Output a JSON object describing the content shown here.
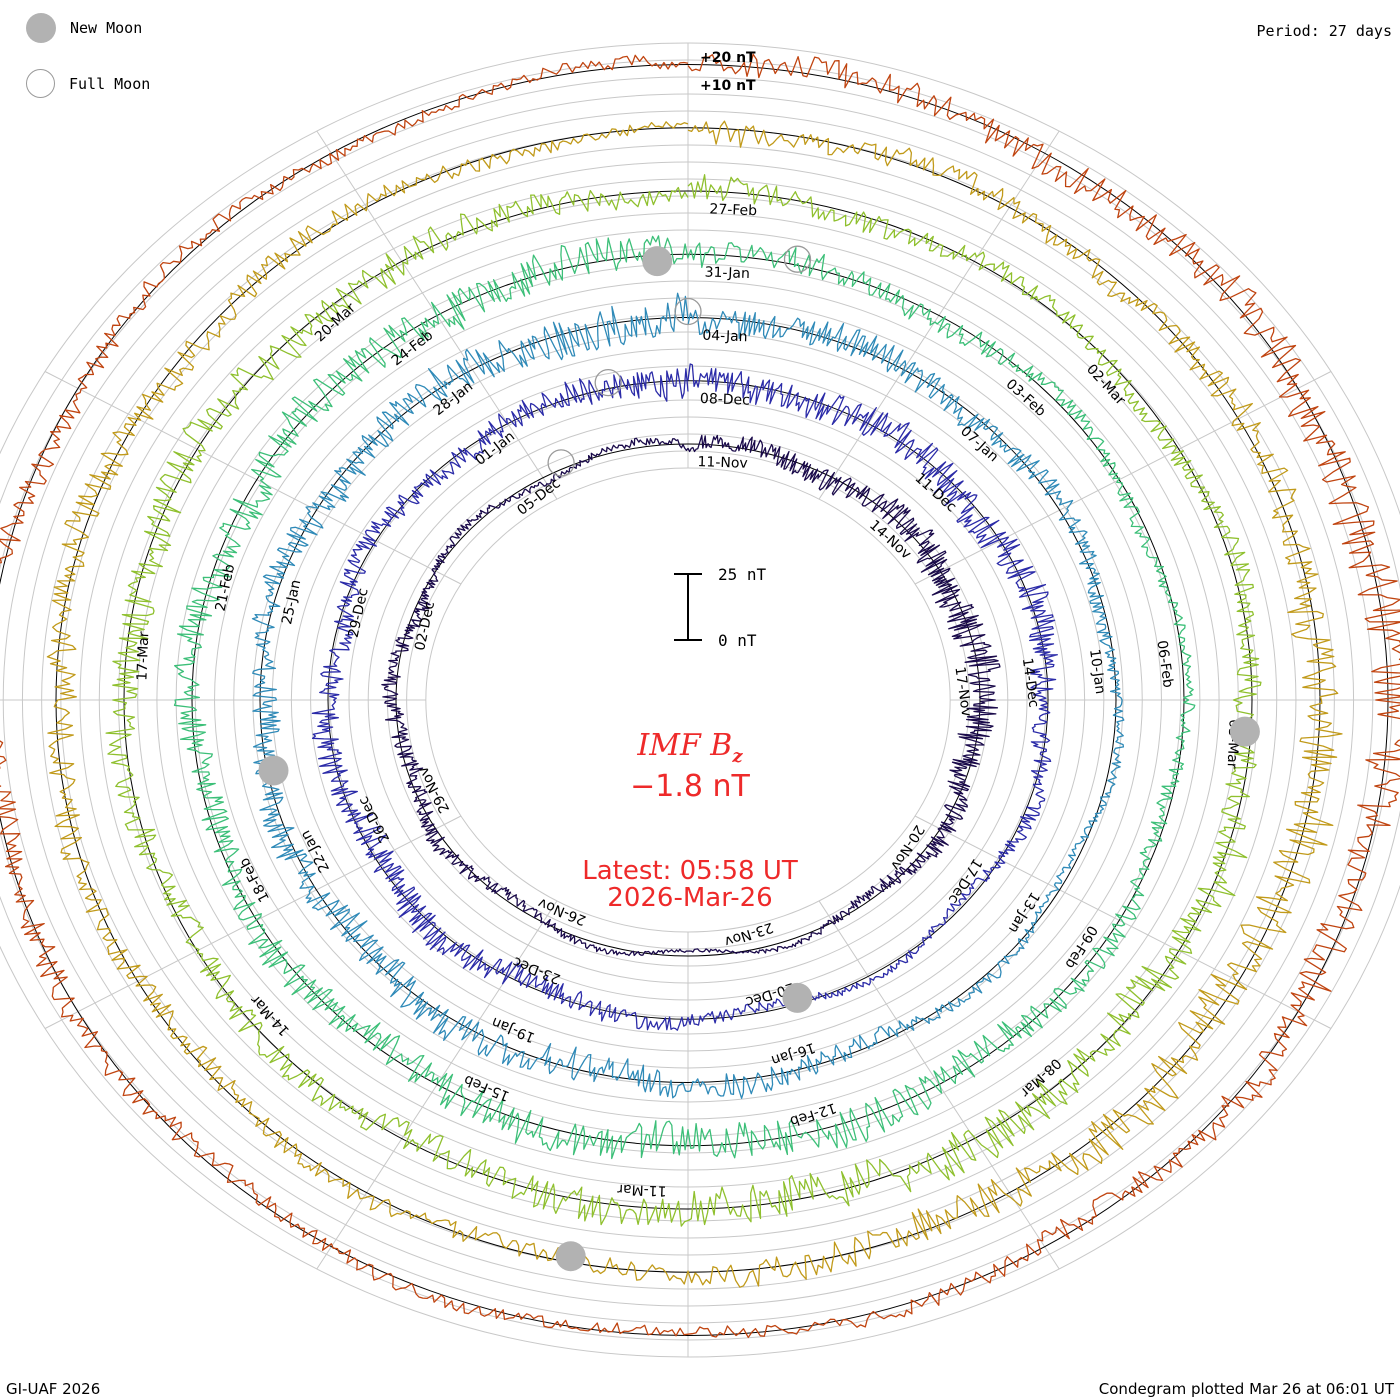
{
  "header": {
    "period_text": "Period: 27 days"
  },
  "legend": {
    "new_moon_label": "New Moon",
    "full_moon_label": "Full Moon"
  },
  "center": {
    "title": "IMF B",
    "title_subscript": "z",
    "value": "−1.8 nT",
    "latest_label": "Latest: 05:58 UT",
    "latest_date": "2026-Mar-26"
  },
  "footer": {
    "credit": "GI-UAF 2026",
    "plotted": "Condegram plotted Mar 26 at 06:01 UT"
  },
  "colors": {
    "rings": [
      "#1a0a4a",
      "#2b2ba8",
      "#2f8ab8",
      "#3cbf78",
      "#8fc02e",
      "#c19a1a",
      "#c04410"
    ],
    "annotation": "#ee2a2a",
    "moon": "#b2b2b2"
  },
  "chart_data": {
    "type": "condegram",
    "title": "IMF Bz",
    "period_days": 27,
    "units": "nT",
    "scale_bar": {
      "top_label": "25 nT",
      "bottom_label": "0 nT",
      "value_nT": 25
    },
    "outer_scale_labels": [
      "+20 nT",
      "+10 nT"
    ],
    "cycles": [
      {
        "index": 0,
        "color": "#1a0a4a",
        "date_labels": [
          "11-Nov",
          "14-Nov",
          "17-Nov",
          "20-Nov",
          "23-Nov",
          "26-Nov",
          "29-Nov",
          "02-Dec",
          "05-Dec"
        ]
      },
      {
        "index": 1,
        "color": "#2b2ba8",
        "date_labels": [
          "08-Dec",
          "11-Dec",
          "14-Dec",
          "17-Dec",
          "20-Dec",
          "23-Dec",
          "26-Dec",
          "29-Dec",
          "01-Jan"
        ]
      },
      {
        "index": 2,
        "color": "#2f8ab8",
        "date_labels": [
          "04-Jan",
          "07-Jan",
          "10-Jan",
          "13-Jan",
          "16-Jan",
          "19-Jan",
          "22-Jan",
          "25-Jan",
          "28-Jan"
        ]
      },
      {
        "index": 3,
        "color": "#3cbf78",
        "date_labels": [
          "31-Jan",
          "03-Feb",
          "06-Feb",
          "09-Feb",
          "12-Feb",
          "15-Feb",
          "18-Feb",
          "21-Feb",
          "24-Feb"
        ]
      },
      {
        "index": 4,
        "color": "#8fc02e",
        "date_labels": [
          "27-Feb",
          "02-Mar",
          "05-Mar",
          "08-Mar",
          "11-Mar",
          "14-Mar",
          "17-Mar",
          "20-Mar"
        ]
      }
    ],
    "new_moons": [
      "20-Nov",
      "19-Dec",
      "18-Jan",
      "17-Feb",
      "18-Mar"
    ],
    "full_moons": [
      "05-Dec",
      "03-Jan",
      "01-Feb",
      "03-Mar"
    ],
    "latest_value_nT": -1.8,
    "latest_time": "2026-Mar-26 05:58 UT"
  }
}
